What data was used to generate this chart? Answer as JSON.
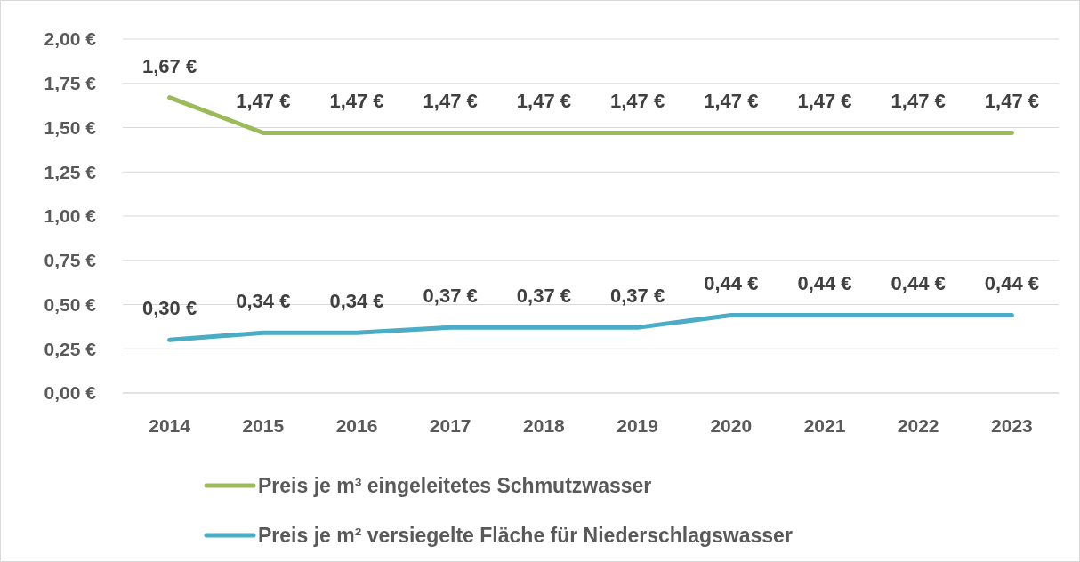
{
  "chart_data": {
    "type": "line",
    "categories": [
      "2014",
      "2015",
      "2016",
      "2017",
      "2018",
      "2019",
      "2020",
      "2021",
      "2022",
      "2023"
    ],
    "series": [
      {
        "name": "Preis je m³ eingeleitetes Schmutzwasser",
        "color": "#9bbb59",
        "values": [
          1.67,
          1.47,
          1.47,
          1.47,
          1.47,
          1.47,
          1.47,
          1.47,
          1.47,
          1.47
        ],
        "value_labels": [
          "1,67 €",
          "1,47 €",
          "1,47 €",
          "1,47 €",
          "1,47 €",
          "1,47 €",
          "1,47 €",
          "1,47 €",
          "1,47 €",
          "1,47 €"
        ]
      },
      {
        "name": "Preis je m² versiegelte Fläche für Niederschlagswasser",
        "color": "#4bacc6",
        "values": [
          0.3,
          0.34,
          0.34,
          0.37,
          0.37,
          0.37,
          0.44,
          0.44,
          0.44,
          0.44
        ],
        "value_labels": [
          "0,30 €",
          "0,34 €",
          "0,34 €",
          "0,37 €",
          "0,37 €",
          "0,37 €",
          "0,44 €",
          "0,44 €",
          "0,44 €",
          "0,44 €"
        ]
      }
    ],
    "ylim": [
      0,
      2
    ],
    "yticks": [
      {
        "value": 0,
        "label": "0,00 €"
      },
      {
        "value": 0.25,
        "label": "0,25 €"
      },
      {
        "value": 0.5,
        "label": "0,50 €"
      },
      {
        "value": 0.75,
        "label": "0,75 €"
      },
      {
        "value": 1,
        "label": "1,00 €"
      },
      {
        "value": 1.25,
        "label": "1,25 €"
      },
      {
        "value": 1.5,
        "label": "1,50 €"
      },
      {
        "value": 1.75,
        "label": "1,75 €"
      },
      {
        "value": 2,
        "label": "2,00 €"
      }
    ],
    "grid": "y",
    "legend": "bottom",
    "marker": "none",
    "line_style": "solid"
  }
}
